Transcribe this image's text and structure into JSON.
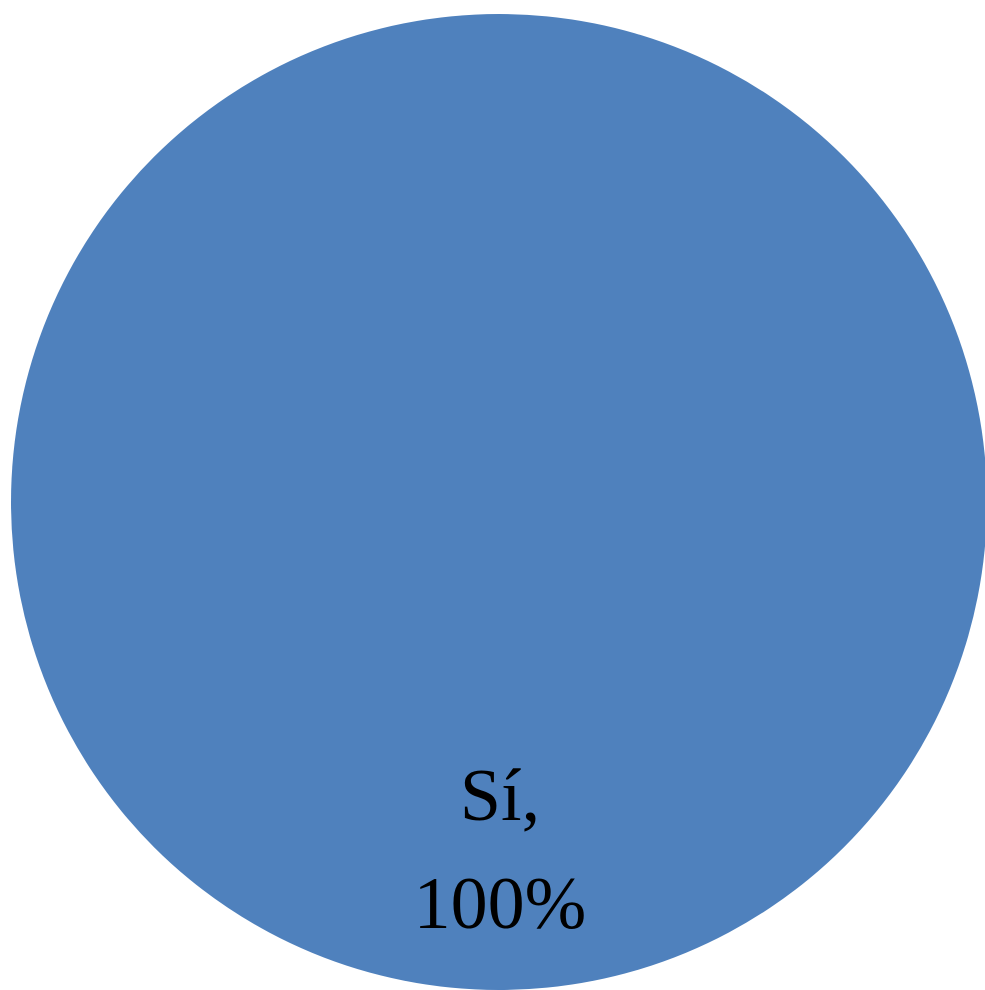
{
  "chart_data": {
    "type": "pie",
    "categories": [
      "Sí"
    ],
    "values": [
      100
    ],
    "data_labels": [
      {
        "category_text": "Sí,",
        "value_text": "100%"
      }
    ],
    "colors": [
      "#4f81bd"
    ],
    "title": "",
    "legend": "none"
  }
}
